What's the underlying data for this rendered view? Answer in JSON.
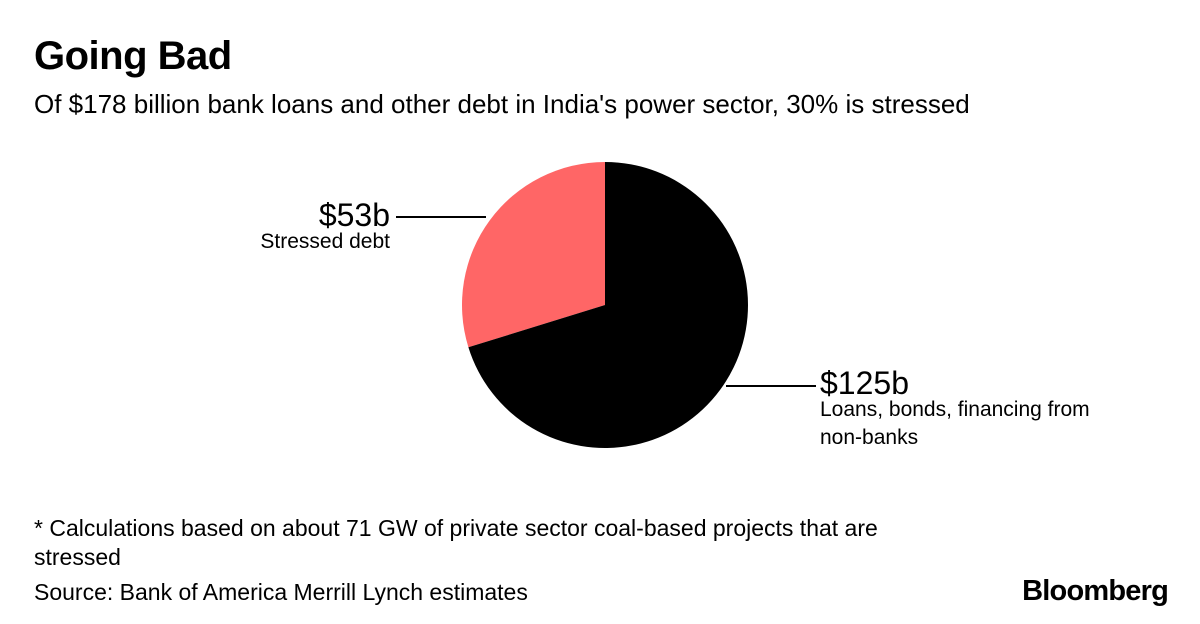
{
  "header": {
    "title": "Going Bad",
    "subtitle": "Of $178 billion bank loans and other debt in India's power sector, 30% is stressed"
  },
  "chart_data": {
    "type": "pie",
    "total": 178,
    "unit": "billion USD",
    "slices": [
      {
        "value_label": "$53b",
        "label": "Stressed debt",
        "value": 53,
        "color": "#ff6666"
      },
      {
        "value_label": "$125b",
        "label": "Loans, bonds, financing from non-banks",
        "value": 125,
        "color": "#000000"
      }
    ],
    "label_lines": [
      "Loans, bonds, financing from",
      "non-banks"
    ]
  },
  "footer": {
    "footnote": "* Calculations based on about 71 GW of private sector coal-based projects that are stressed",
    "source": "Source: Bank of America Merrill Lynch estimates",
    "brand": "Bloomberg"
  }
}
